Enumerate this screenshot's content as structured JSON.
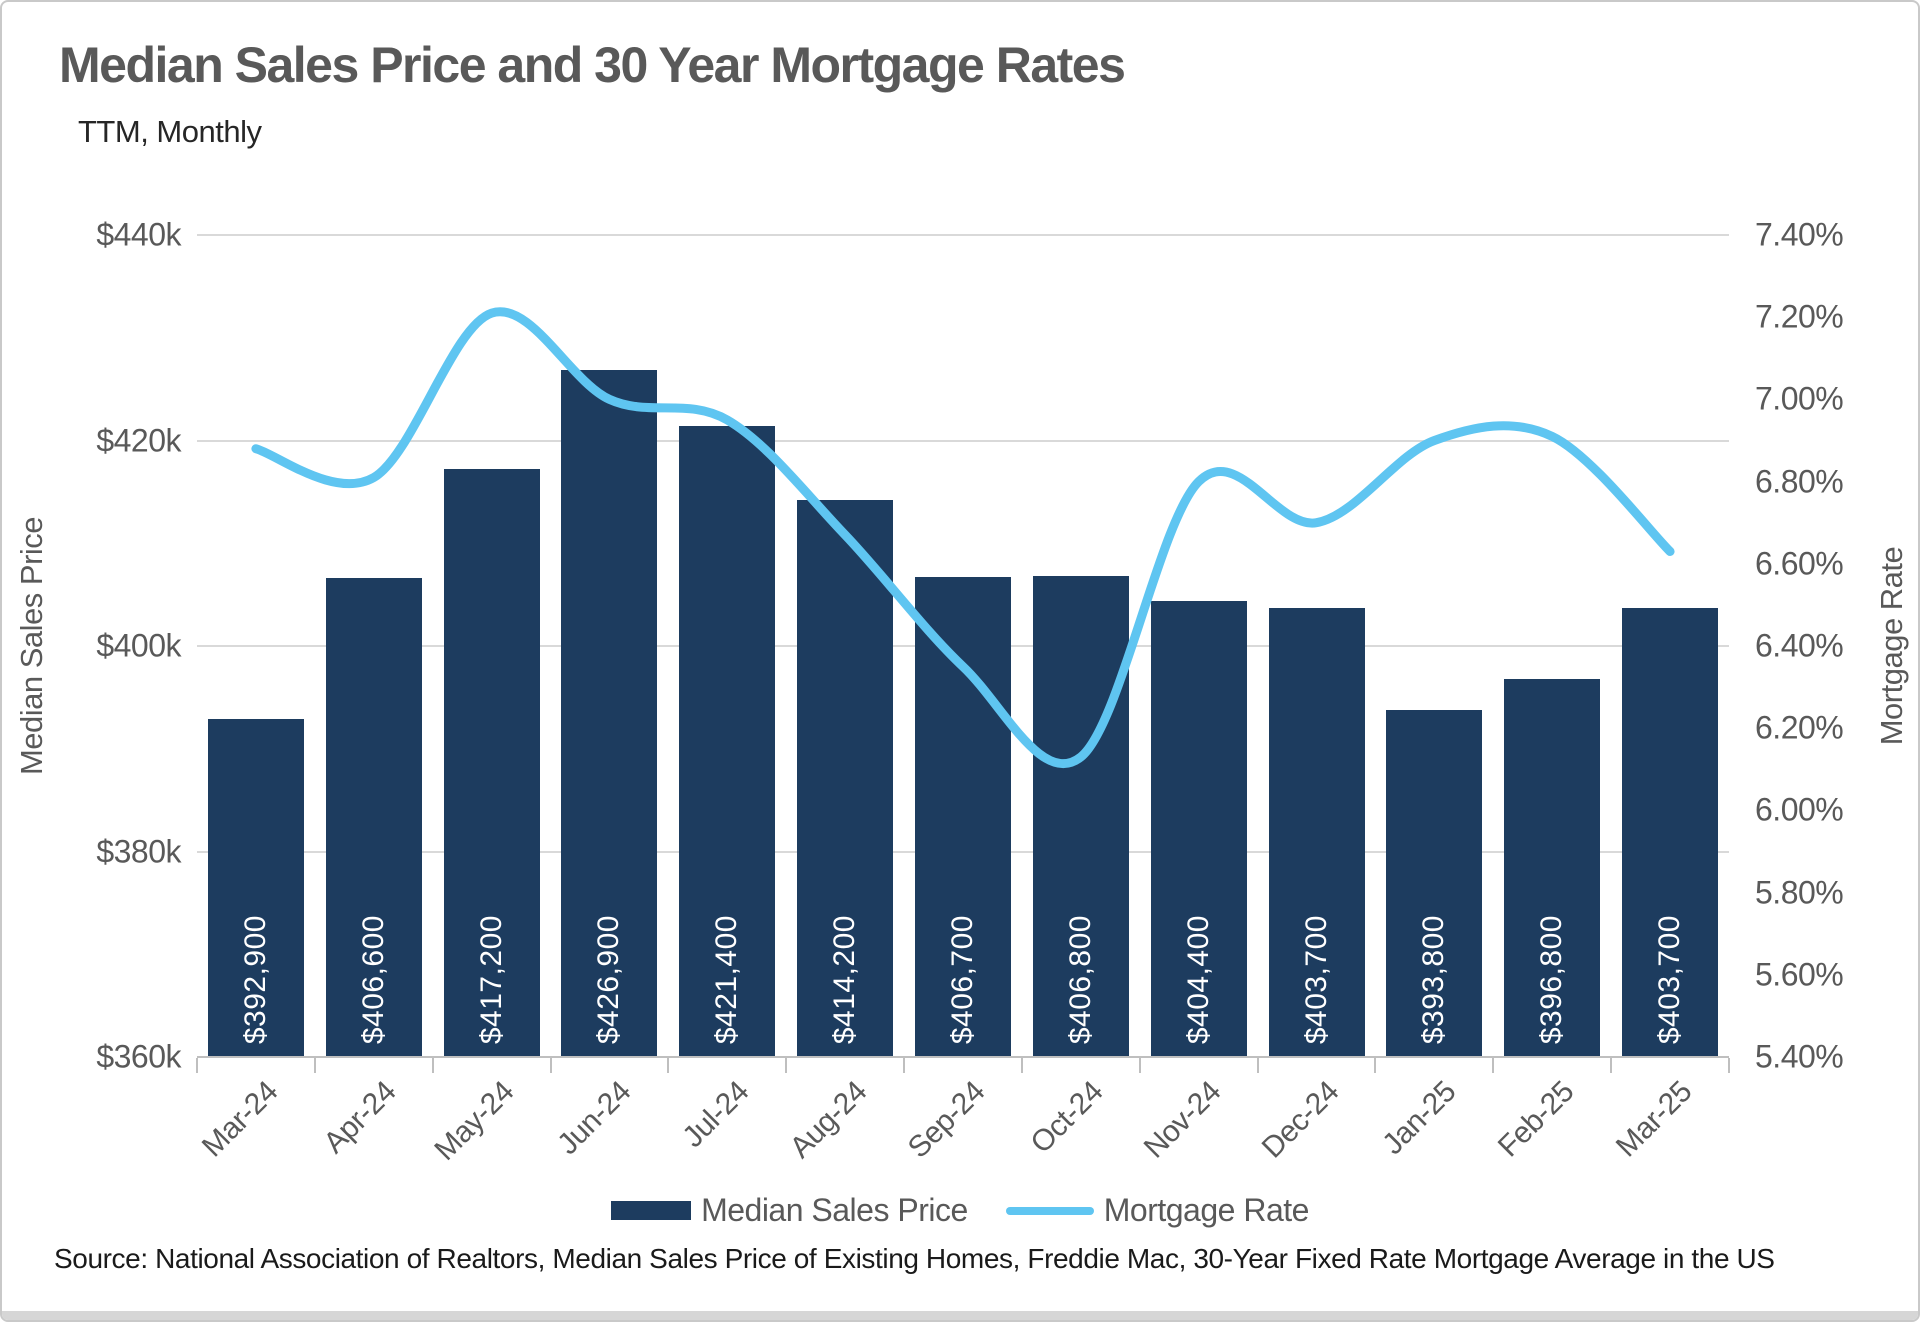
{
  "header": {
    "title": "Median Sales Price and 30 Year Mortgage Rates",
    "subtitle": "TTM, Monthly"
  },
  "chart_data": {
    "type": "bar",
    "subtype": "bar-line-combo",
    "categories": [
      "Mar-24",
      "Apr-24",
      "May-24",
      "Jun-24",
      "Jul-24",
      "Aug-24",
      "Sep-24",
      "Oct-24",
      "Nov-24",
      "Dec-24",
      "Jan-25",
      "Feb-25",
      "Mar-25"
    ],
    "series": [
      {
        "name": "Median Sales Price",
        "type": "bar",
        "axis": "left",
        "color": "#1d3c5f",
        "values": [
          392900,
          406600,
          417200,
          426900,
          421400,
          414200,
          406700,
          406800,
          404400,
          403700,
          393800,
          396800,
          403700
        ],
        "labels": [
          "$392,900",
          "$406,600",
          "$417,200",
          "$426,900",
          "$421,400",
          "$414,200",
          "$406,700",
          "$406,800",
          "$404,400",
          "$403,700",
          "$393,800",
          "$396,800",
          "$403,700"
        ]
      },
      {
        "name": "Mortgage Rate",
        "type": "line",
        "axis": "right",
        "color": "#5fc5f1",
        "values": [
          6.88,
          6.81,
          7.21,
          7.0,
          6.95,
          6.67,
          6.35,
          6.13,
          6.8,
          6.7,
          6.9,
          6.91,
          6.63
        ]
      }
    ],
    "left_axis": {
      "title": "Median Sales Price",
      "min": 360000,
      "max": 440000,
      "tick_step": 20000,
      "ticks": [
        "$440k",
        "$420k",
        "$400k",
        "$380k",
        "$360k"
      ]
    },
    "right_axis": {
      "title": "Mortgage Rate",
      "min": 5.4,
      "max": 7.4,
      "tick_step": 0.2,
      "ticks": [
        "7.40%",
        "7.20%",
        "7.00%",
        "6.80%",
        "6.60%",
        "6.40%",
        "6.20%",
        "6.00%",
        "5.80%",
        "5.60%",
        "5.40%"
      ]
    },
    "grid": "horizontal",
    "legend_position": "bottom"
  },
  "legend": {
    "bar_label": "Median Sales Price",
    "line_label": "Mortgage Rate"
  },
  "source": {
    "text": "Source: National Association of Realtors, Median Sales Price of Existing Homes, Freddie Mac, 30-Year Fixed Rate Mortgage Average in the US"
  },
  "colors": {
    "bar": "#1d3c5f",
    "line": "#5fc5f1",
    "gridline": "#d9d9d9",
    "axis_line": "#bfbfbf",
    "tick_text": "#595959",
    "title_text": "#595959",
    "bar_value_text": "#ffffff",
    "source_text": "#1a1a1a",
    "frame": "#c9c9c9"
  }
}
